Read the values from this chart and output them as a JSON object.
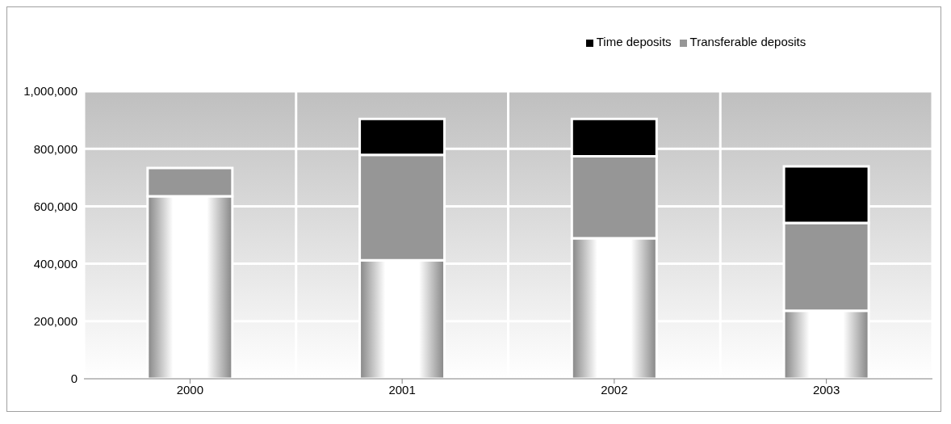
{
  "chart_data": {
    "type": "bar",
    "stacked": true,
    "categories": [
      "2000",
      "2001",
      "2002",
      "2003"
    ],
    "series": [
      {
        "color": "#ffffff",
        "values": [
          635000,
          412000,
          489000,
          237000
        ]
      },
      {
        "name": "Transferable deposits",
        "color": "#969696",
        "values": [
          98000,
          367000,
          285000,
          305000
        ]
      },
      {
        "name": "Time deposits",
        "color": "#000000",
        "values": [
          0,
          125000,
          130000,
          197000
        ]
      }
    ],
    "ylim": [
      0,
      1000000
    ],
    "yticks": [
      0,
      {
        "value": 200000,
        "label": "200,000"
      },
      {
        "value": 400000,
        "label": "400,000"
      },
      {
        "value": 600000,
        "label": "600,000"
      },
      {
        "value": 800000,
        "label": "800,000"
      },
      {
        "value": 1000000,
        "label": "1,000,000"
      }
    ],
    "grid": true,
    "legend": "top"
  }
}
